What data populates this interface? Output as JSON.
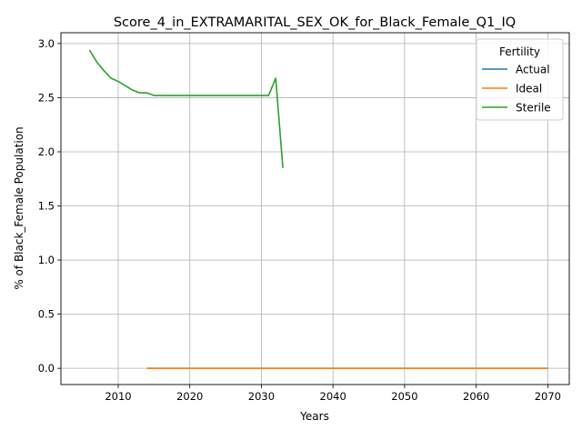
{
  "chart_data": {
    "type": "line",
    "title": "Score_4_in_EXTRAMARITAL_SEX_OK_for_Black_Female_Q1_IQ",
    "xlabel": "Years",
    "ylabel": "% of Black_Female Population",
    "xlim": [
      2002,
      2073
    ],
    "ylim": [
      -0.15,
      3.1
    ],
    "xticks": [
      2010,
      2020,
      2030,
      2040,
      2050,
      2060,
      2070
    ],
    "yticks": [
      0.0,
      0.5,
      1.0,
      1.5,
      2.0,
      2.5,
      3.0
    ],
    "xtick_labels": [
      "2010",
      "2020",
      "2030",
      "2040",
      "2050",
      "2060",
      "2070"
    ],
    "ytick_labels": [
      "0.0",
      "0.5",
      "1.0",
      "1.5",
      "2.0",
      "2.5",
      "3.0"
    ],
    "grid": true,
    "legend": {
      "title": "Fertility",
      "position": "top-right"
    },
    "series": [
      {
        "name": "Actual",
        "color": "#1f77b4",
        "x": [
          2014,
          2020,
          2030,
          2040,
          2050,
          2060,
          2070
        ],
        "y": [
          0,
          0,
          0,
          0,
          0,
          0,
          0
        ]
      },
      {
        "name": "Ideal",
        "color": "#ff7f0e",
        "x": [
          2014,
          2020,
          2030,
          2040,
          2050,
          2060,
          2070
        ],
        "y": [
          0,
          0,
          0,
          0,
          0,
          0,
          0
        ]
      },
      {
        "name": "Sterile",
        "color": "#2ca02c",
        "x": [
          2006,
          2007,
          2008,
          2009,
          2010,
          2011,
          2012,
          2013,
          2014,
          2015,
          2016,
          2017,
          2018,
          2019,
          2020,
          2021,
          2022,
          2023,
          2024,
          2025,
          2026,
          2027,
          2028,
          2029,
          2030,
          2031,
          2032,
          2033
        ],
        "y": [
          2.94,
          2.83,
          2.75,
          2.68,
          2.65,
          2.61,
          2.57,
          2.545,
          2.545,
          2.52,
          2.52,
          2.52,
          2.52,
          2.52,
          2.52,
          2.52,
          2.52,
          2.52,
          2.52,
          2.52,
          2.52,
          2.52,
          2.52,
          2.52,
          2.52,
          2.52,
          2.68,
          1.85
        ]
      }
    ]
  }
}
